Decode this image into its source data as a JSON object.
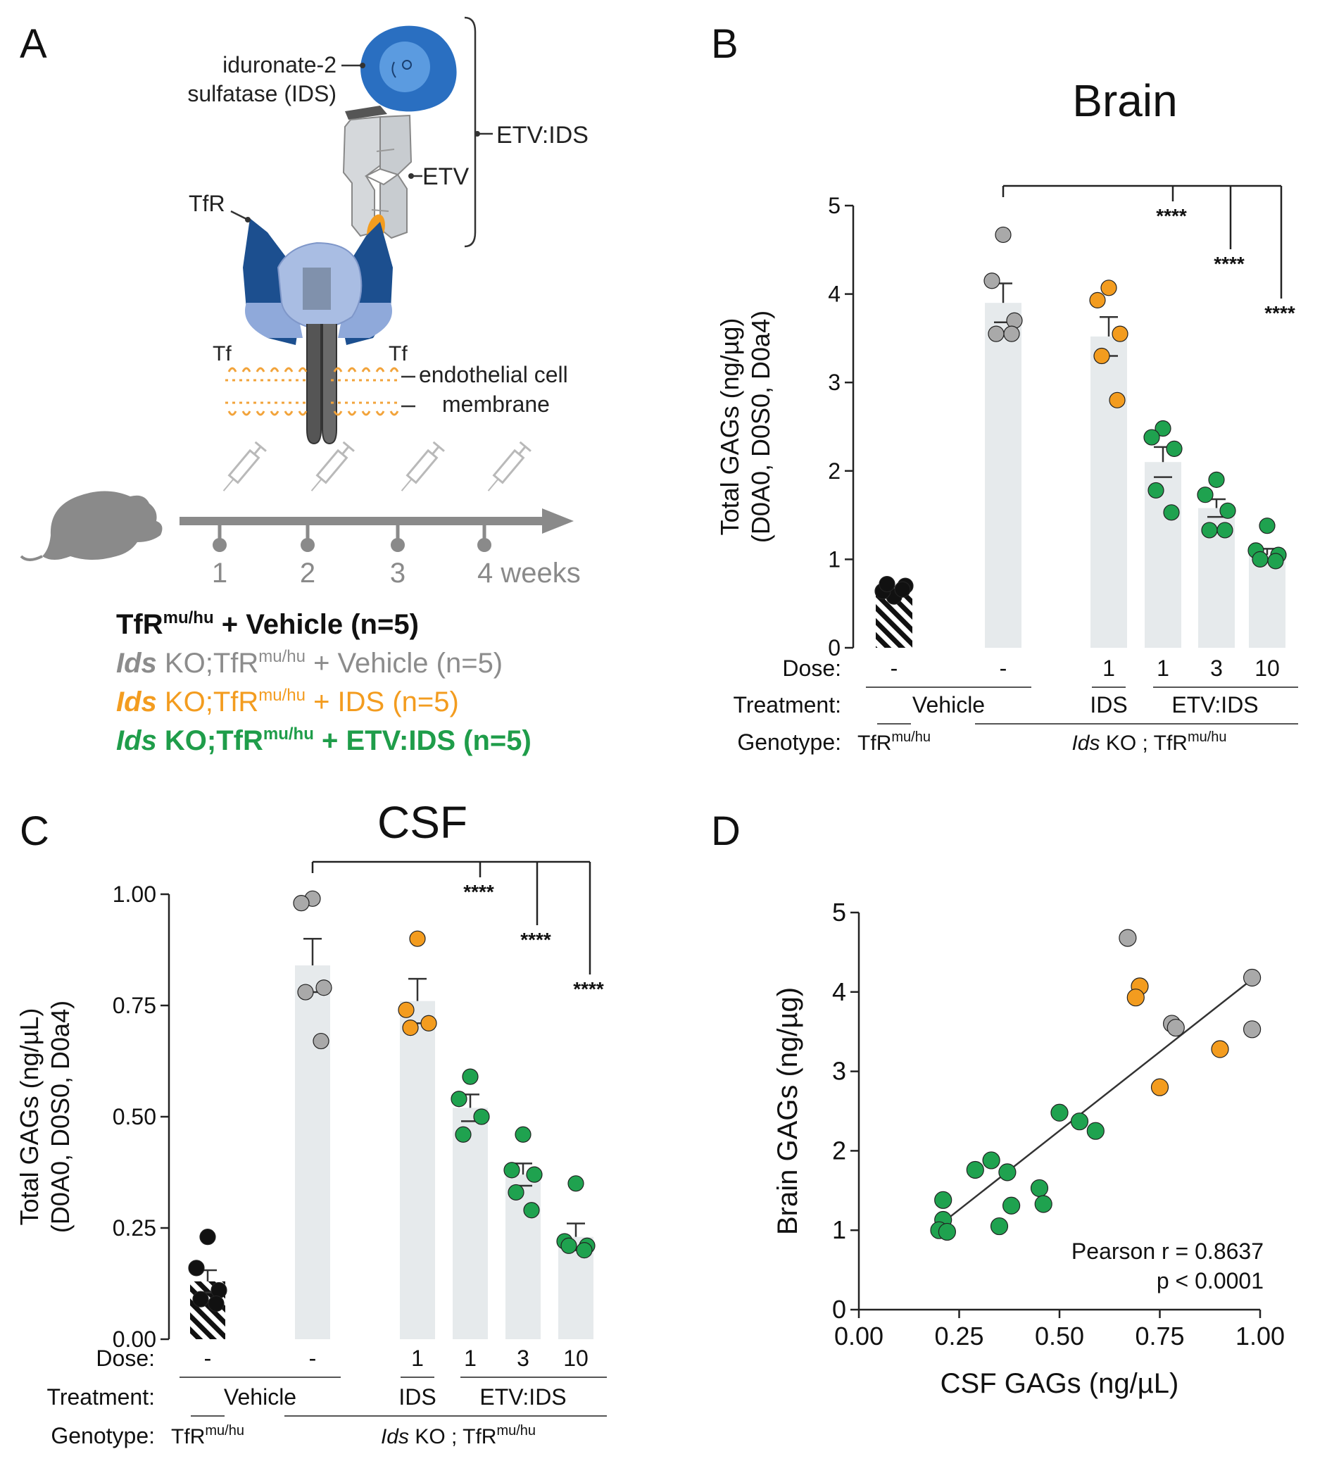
{
  "panel_labels": {
    "A": "A",
    "B": "B",
    "C": "C",
    "D": "D"
  },
  "schematic": {
    "ids_label_line1": "iduronate-2",
    "ids_label_line2": "sulfatase (IDS)",
    "etv_ids_label": "ETV:IDS",
    "etv_label": "ETV",
    "tfr_label": "TfR",
    "tf_label_left": "Tf",
    "tf_label_right": "Tf",
    "membrane_line1": "endothelial cell",
    "membrane_line2": "membrane",
    "timeline_ticks": [
      "1",
      "2",
      "3",
      "4 weeks"
    ],
    "legend": [
      {
        "italic": "",
        "pre": "TfR",
        "sup": "mu/hu",
        "post": " + Vehicle (n=5)",
        "color": "#111111"
      },
      {
        "italic": "Ids",
        "pre": " KO;TfR",
        "sup": "mu/hu",
        "post": " + Vehicle (n=5)",
        "color": "#8c8c8c"
      },
      {
        "italic": "Ids",
        "pre": " KO;TfR",
        "sup": "mu/hu",
        "post": " + IDS (n=5)",
        "color": "#f39c1f"
      },
      {
        "italic": "Ids",
        "pre": " KO;TfR",
        "sup": "mu/hu",
        "post": " + ETV:IDS (n=5)",
        "color": "#1f9d4a"
      }
    ]
  },
  "colors": {
    "black": "#111111",
    "gray": "#a9a9a9",
    "orange": "#f39c1f",
    "green": "#1fa24f",
    "bar": "#e6eaec",
    "line": "#333333",
    "ids_blue": "#2a6fc1",
    "tfr_blue": "#2d64a8",
    "tfr_light": "#a9bde3",
    "membrane": "#f2a33a",
    "mouse": "#8a8a8a",
    "syringe": "#b9b9b9"
  },
  "chart_data": [
    {
      "panel": "B",
      "type": "bar",
      "title": "Brain",
      "ylabel_line1": "Total GAGs (ng/µg)",
      "ylabel_line2": "(D0A0, D0S0, D0a4)",
      "ylim": [
        0,
        5
      ],
      "yticks": [
        0,
        1,
        2,
        3,
        4,
        5
      ],
      "ytick_labels": [
        "0",
        "1",
        "2",
        "3",
        "4",
        "5"
      ],
      "groups": [
        {
          "name": "TfR mu/hu + Vehicle",
          "color_key": "black",
          "hatched": true,
          "mean": 0.62,
          "sem": 0.04,
          "points": [
            0.58,
            0.64,
            0.7,
            0.72,
            0.66
          ]
        },
        {
          "name": "Ids KO + Vehicle",
          "color_key": "gray",
          "hatched": false,
          "mean": 3.9,
          "sem": 0.22,
          "points": [
            4.67,
            4.15,
            3.7,
            3.55,
            3.55
          ]
        },
        {
          "name": "Ids KO + IDS 1",
          "color_key": "orange",
          "hatched": false,
          "mean": 3.52,
          "sem": 0.22,
          "points": [
            4.07,
            3.93,
            3.55,
            3.3,
            2.8
          ]
        },
        {
          "name": "Ids KO + ETV:IDS 1",
          "color_key": "green",
          "hatched": false,
          "mean": 2.1,
          "sem": 0.17,
          "points": [
            2.48,
            2.38,
            2.25,
            1.78,
            1.53
          ]
        },
        {
          "name": "Ids KO + ETV:IDS 3",
          "color_key": "green",
          "hatched": false,
          "mean": 1.58,
          "sem": 0.1,
          "points": [
            1.9,
            1.73,
            1.55,
            1.33,
            1.33
          ]
        },
        {
          "name": "Ids KO + ETV:IDS 10",
          "color_key": "green",
          "hatched": false,
          "mean": 1.05,
          "sem": 0.07,
          "points": [
            1.38,
            1.1,
            1.05,
            1.0,
            0.98
          ]
        }
      ],
      "significance": [
        "****",
        "****",
        "****"
      ],
      "dose_row_label": "Dose:",
      "treatment_row_label": "Treatment:",
      "genotype_row_label": "Genotype:",
      "doses": [
        "-",
        "-",
        "1",
        "1",
        "3",
        "10"
      ],
      "treatment_vehicle": "Vehicle",
      "treatment_ids": "IDS",
      "treatment_etv": "ETV:IDS",
      "genotype_tfr": "TfR",
      "genotype_tfr_sup": "mu/hu",
      "genotype_ko_italic": "Ids",
      "genotype_ko_rest": " KO ; TfR",
      "genotype_ko_sup": "mu/hu"
    },
    {
      "panel": "C",
      "type": "bar",
      "title": "CSF",
      "ylabel_line1": "Total GAGs (ng/µL)",
      "ylabel_line2": "(D0A0, D0S0, D0a4)",
      "ylim": [
        0,
        1
      ],
      "yticks": [
        0,
        0.25,
        0.5,
        0.75,
        1
      ],
      "ytick_labels": [
        "0.00",
        "0.25",
        "0.50",
        "0.75",
        "1.00"
      ],
      "groups": [
        {
          "name": "TfR mu/hu + Vehicle",
          "color_key": "black",
          "hatched": true,
          "mean": 0.13,
          "sem": 0.025,
          "points": [
            0.23,
            0.16,
            0.11,
            0.09,
            0.08
          ]
        },
        {
          "name": "Ids KO + Vehicle",
          "color_key": "gray",
          "hatched": false,
          "mean": 0.84,
          "sem": 0.06,
          "points": [
            0.99,
            0.98,
            0.79,
            0.78,
            0.67
          ]
        },
        {
          "name": "Ids KO + IDS 1",
          "color_key": "orange",
          "hatched": false,
          "mean": 0.76,
          "sem": 0.05,
          "points": [
            0.9,
            0.74,
            0.71,
            0.7
          ]
        },
        {
          "name": "Ids KO + ETV:IDS 1",
          "color_key": "green",
          "hatched": false,
          "mean": 0.52,
          "sem": 0.03,
          "points": [
            0.59,
            0.54,
            0.5,
            0.46
          ]
        },
        {
          "name": "Ids KO + ETV:IDS 3",
          "color_key": "green",
          "hatched": false,
          "mean": 0.37,
          "sem": 0.025,
          "points": [
            0.46,
            0.38,
            0.37,
            0.33,
            0.29
          ]
        },
        {
          "name": "Ids KO + ETV:IDS 10",
          "color_key": "green",
          "hatched": false,
          "mean": 0.23,
          "sem": 0.03,
          "points": [
            0.35,
            0.22,
            0.21,
            0.21,
            0.2
          ]
        }
      ],
      "significance": [
        "****",
        "****",
        "****"
      ],
      "dose_row_label": "Dose:",
      "treatment_row_label": "Treatment:",
      "genotype_row_label": "Genotype:",
      "doses": [
        "-",
        "-",
        "1",
        "1",
        "3",
        "10"
      ],
      "treatment_vehicle": "Vehicle",
      "treatment_ids": "IDS",
      "treatment_etv": "ETV:IDS",
      "genotype_tfr": "TfR",
      "genotype_tfr_sup": "mu/hu",
      "genotype_ko_italic": "Ids",
      "genotype_ko_rest": " KO ; TfR",
      "genotype_ko_sup": "mu/hu"
    },
    {
      "panel": "D",
      "type": "scatter",
      "xlabel": "CSF GAGs (ng/µL)",
      "ylabel": "Brain GAGs (ng/µg)",
      "xlim": [
        0,
        1
      ],
      "ylim": [
        0,
        5
      ],
      "xticks": [
        0,
        0.25,
        0.5,
        0.75,
        1
      ],
      "xtick_labels": [
        "0.00",
        "0.25",
        "0.50",
        "0.75",
        "1.00"
      ],
      "yticks": [
        0,
        1,
        2,
        3,
        4,
        5
      ],
      "ytick_labels": [
        "0",
        "1",
        "2",
        "3",
        "4",
        "5"
      ],
      "fit_line": {
        "x": [
          0.21,
          0.99
        ],
        "y": [
          1.1,
          4.2
        ]
      },
      "annotation_line1": "Pearson r = 0.8637",
      "annotation_line2": "p < 0.0001",
      "points": [
        {
          "x": 0.67,
          "y": 4.68,
          "color_key": "gray"
        },
        {
          "x": 0.98,
          "y": 4.18,
          "color_key": "gray"
        },
        {
          "x": 0.98,
          "y": 3.53,
          "color_key": "gray"
        },
        {
          "x": 0.78,
          "y": 3.6,
          "color_key": "gray"
        },
        {
          "x": 0.79,
          "y": 3.55,
          "color_key": "gray"
        },
        {
          "x": 0.7,
          "y": 4.07,
          "color_key": "orange"
        },
        {
          "x": 0.69,
          "y": 3.93,
          "color_key": "orange"
        },
        {
          "x": 0.9,
          "y": 3.28,
          "color_key": "orange"
        },
        {
          "x": 0.75,
          "y": 2.8,
          "color_key": "orange"
        },
        {
          "x": 0.5,
          "y": 2.48,
          "color_key": "green"
        },
        {
          "x": 0.55,
          "y": 2.37,
          "color_key": "green"
        },
        {
          "x": 0.59,
          "y": 2.25,
          "color_key": "green"
        },
        {
          "x": 0.33,
          "y": 1.88,
          "color_key": "green"
        },
        {
          "x": 0.29,
          "y": 1.76,
          "color_key": "green"
        },
        {
          "x": 0.37,
          "y": 1.73,
          "color_key": "green"
        },
        {
          "x": 0.45,
          "y": 1.53,
          "color_key": "green"
        },
        {
          "x": 0.46,
          "y": 1.33,
          "color_key": "green"
        },
        {
          "x": 0.38,
          "y": 1.31,
          "color_key": "green"
        },
        {
          "x": 0.35,
          "y": 1.05,
          "color_key": "green"
        },
        {
          "x": 0.21,
          "y": 1.38,
          "color_key": "green"
        },
        {
          "x": 0.21,
          "y": 1.13,
          "color_key": "green"
        },
        {
          "x": 0.2,
          "y": 1.0,
          "color_key": "green"
        },
        {
          "x": 0.22,
          "y": 0.98,
          "color_key": "green"
        }
      ]
    }
  ]
}
